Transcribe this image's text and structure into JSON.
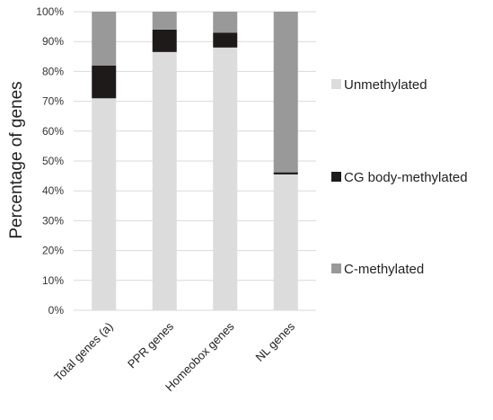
{
  "chart_data": {
    "type": "bar",
    "stacked": true,
    "categories": [
      "Total genes (a)",
      "PPR genes",
      "Homeobox genes",
      "NL genes"
    ],
    "series": [
      {
        "name": "Unmethylated",
        "values": [
          71,
          86.5,
          88,
          45.5
        ],
        "color": "#dcdcdc"
      },
      {
        "name": "CG body-methylated",
        "values": [
          11,
          7.5,
          5,
          0.7
        ],
        "color": "#1e1a1a"
      },
      {
        "name": "C-methylated",
        "values": [
          18,
          6,
          7,
          53.8
        ],
        "color": "#999999"
      }
    ],
    "ylabel": "Percentage of genes",
    "ylim": [
      0,
      100
    ],
    "yticks": [
      "0%",
      "10%",
      "20%",
      "30%",
      "40%",
      "50%",
      "60%",
      "70%",
      "80%",
      "90%",
      "100%"
    ],
    "grid": true,
    "legend_position": "right"
  }
}
